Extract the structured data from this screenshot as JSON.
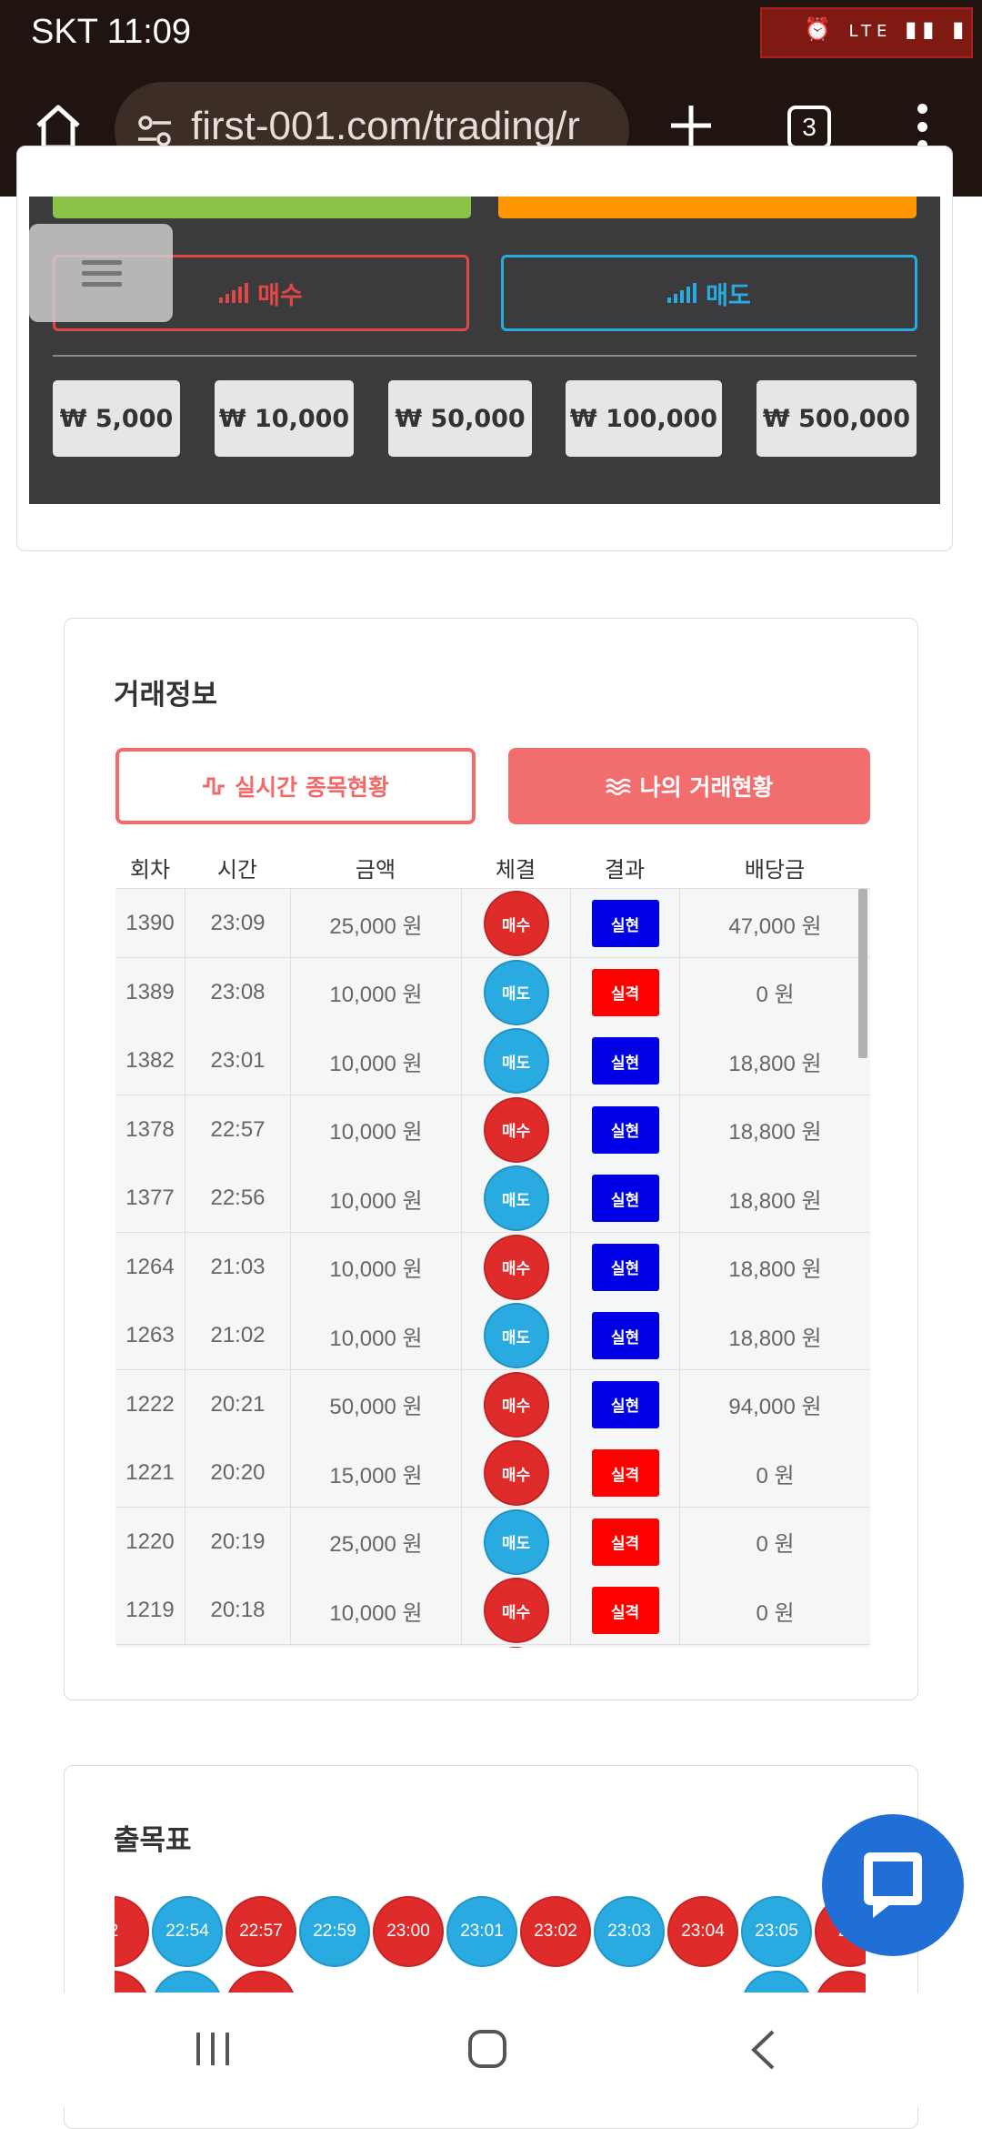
{
  "statusbar": {
    "carrier_time": "SKT 11:09",
    "network": "LTE"
  },
  "browser": {
    "url": "first-001.com/trading/r",
    "tab_count": "3"
  },
  "trade_panel": {
    "buy_label": "매수",
    "sell_label": "매도",
    "amounts": [
      "₩ 5,000",
      "₩ 10,000",
      "₩ 50,000",
      "₩ 100,000",
      "₩ 500,000"
    ]
  },
  "trade_info": {
    "title": "거래정보",
    "tab_realtime": "실시간 종목현황",
    "tab_mine": "나의 거래현황",
    "columns": [
      "회차",
      "시간",
      "금액",
      "체결",
      "결과",
      "배당금"
    ],
    "rows": [
      {
        "round": "1390",
        "time": "23:09",
        "amount": "25,000 원",
        "side": "매수",
        "result": "실현",
        "payout": "47,000 원"
      },
      {
        "round": "1389",
        "time": "23:08",
        "amount": "10,000 원",
        "side": "매도",
        "result": "실격",
        "payout": "0 원"
      },
      {
        "round": "1382",
        "time": "23:01",
        "amount": "10,000 원",
        "side": "매도",
        "result": "실현",
        "payout": "18,800 원"
      },
      {
        "round": "1378",
        "time": "22:57",
        "amount": "10,000 원",
        "side": "매수",
        "result": "실현",
        "payout": "18,800 원"
      },
      {
        "round": "1377",
        "time": "22:56",
        "amount": "10,000 원",
        "side": "매도",
        "result": "실현",
        "payout": "18,800 원"
      },
      {
        "round": "1264",
        "time": "21:03",
        "amount": "10,000 원",
        "side": "매수",
        "result": "실현",
        "payout": "18,800 원"
      },
      {
        "round": "1263",
        "time": "21:02",
        "amount": "10,000 원",
        "side": "매도",
        "result": "실현",
        "payout": "18,800 원"
      },
      {
        "round": "1222",
        "time": "20:21",
        "amount": "50,000 원",
        "side": "매수",
        "result": "실현",
        "payout": "94,000 원"
      },
      {
        "round": "1221",
        "time": "20:20",
        "amount": "15,000 원",
        "side": "매수",
        "result": "실격",
        "payout": "0 원"
      },
      {
        "round": "1220",
        "time": "20:19",
        "amount": "25,000 원",
        "side": "매도",
        "result": "실격",
        "payout": "0 원"
      },
      {
        "round": "1219",
        "time": "20:18",
        "amount": "10,000 원",
        "side": "매수",
        "result": "실격",
        "payout": "0 원"
      }
    ]
  },
  "chart_table": {
    "title": "출목표",
    "beads": [
      {
        "label": "2",
        "color": "red"
      },
      {
        "label": "22:54",
        "color": "blue"
      },
      {
        "label": "22:57",
        "color": "red"
      },
      {
        "label": "22:59",
        "color": "blue"
      },
      {
        "label": "23:00",
        "color": "red"
      },
      {
        "label": "23:01",
        "color": "blue"
      },
      {
        "label": "23:02",
        "color": "red"
      },
      {
        "label": "23:03",
        "color": "blue"
      },
      {
        "label": "23:04",
        "color": "red"
      },
      {
        "label": "23:05",
        "color": "blue"
      },
      {
        "label": "23:",
        "color": "red"
      }
    ]
  },
  "colors": {
    "buy": "#e02b2b",
    "sell": "#29abe2",
    "win": "#0000e6",
    "lose": "#ff0000",
    "accent": "#f26e6e"
  }
}
